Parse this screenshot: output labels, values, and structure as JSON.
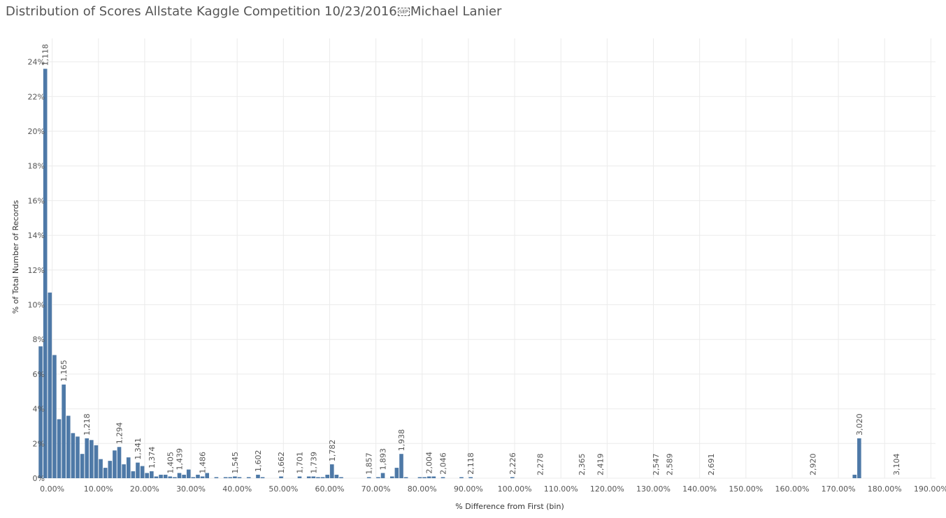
{
  "title_prefix": "Distribution of Scores Allstate Kaggle Competition 10/23/2016",
  "title_sep": "SEP",
  "title_suffix": "Michael Lanier",
  "chart_data": {
    "type": "bar",
    "xlabel": "% Difference from First (bin)",
    "ylabel": "% of Total Number of Records",
    "bar_color": "#4e79a7",
    "grid": true,
    "xlim": [
      -1.0,
      191.0
    ],
    "ylim": [
      0,
      25
    ],
    "x_ticks": [
      "0.00%",
      "10.00%",
      "20.00%",
      "30.00%",
      "40.00%",
      "50.00%",
      "60.00%",
      "70.00%",
      "80.00%",
      "90.00%",
      "100.00%",
      "110.00%",
      "120.00%",
      "130.00%",
      "140.00%",
      "150.00%",
      "160.00%",
      "170.00%",
      "180.00%",
      "190.00%"
    ],
    "x_tick_values": [
      0,
      10,
      20,
      30,
      40,
      50,
      60,
      70,
      80,
      90,
      100,
      110,
      120,
      130,
      140,
      150,
      160,
      170,
      180,
      190
    ],
    "y_ticks": [
      "0%",
      "2%",
      "4%",
      "6%",
      "8%",
      "10%",
      "12%",
      "14%",
      "16%",
      "18%",
      "20%",
      "22%",
      "24%"
    ],
    "y_tick_values": [
      0,
      2,
      4,
      6,
      8,
      10,
      12,
      14,
      16,
      18,
      20,
      22,
      24
    ],
    "bin_width": 1.0,
    "bins": [
      {
        "x": -2.5,
        "y": 7.6
      },
      {
        "x": -1.5,
        "y": 23.6
      },
      {
        "x": -0.5,
        "y": 10.7
      },
      {
        "x": 0.5,
        "y": 7.1
      },
      {
        "x": 1.5,
        "y": 3.4
      },
      {
        "x": 2.5,
        "y": 5.4
      },
      {
        "x": 3.5,
        "y": 3.6
      },
      {
        "x": 4.5,
        "y": 2.6
      },
      {
        "x": 5.5,
        "y": 2.4
      },
      {
        "x": 6.5,
        "y": 1.4
      },
      {
        "x": 7.5,
        "y": 2.3
      },
      {
        "x": 8.5,
        "y": 2.2
      },
      {
        "x": 9.5,
        "y": 1.9
      },
      {
        "x": 10.5,
        "y": 1.1
      },
      {
        "x": 11.5,
        "y": 0.6
      },
      {
        "x": 12.5,
        "y": 1.0
      },
      {
        "x": 13.5,
        "y": 1.6
      },
      {
        "x": 14.5,
        "y": 1.8
      },
      {
        "x": 15.5,
        "y": 0.8
      },
      {
        "x": 16.5,
        "y": 1.2
      },
      {
        "x": 17.5,
        "y": 0.4
      },
      {
        "x": 18.5,
        "y": 0.9
      },
      {
        "x": 19.5,
        "y": 0.7
      },
      {
        "x": 20.5,
        "y": 0.3
      },
      {
        "x": 21.5,
        "y": 0.4
      },
      {
        "x": 22.5,
        "y": 0.1
      },
      {
        "x": 23.5,
        "y": 0.2
      },
      {
        "x": 24.5,
        "y": 0.2
      },
      {
        "x": 25.5,
        "y": 0.1
      },
      {
        "x": 26.5,
        "y": 0.05
      },
      {
        "x": 27.5,
        "y": 0.3
      },
      {
        "x": 28.5,
        "y": 0.2
      },
      {
        "x": 29.5,
        "y": 0.5
      },
      {
        "x": 30.5,
        "y": 0.05
      },
      {
        "x": 31.5,
        "y": 0.2
      },
      {
        "x": 32.5,
        "y": 0.1
      },
      {
        "x": 33.5,
        "y": 0.3
      },
      {
        "x": 35.5,
        "y": 0.05
      },
      {
        "x": 37.5,
        "y": 0.05
      },
      {
        "x": 38.5,
        "y": 0.05
      },
      {
        "x": 39.5,
        "y": 0.1
      },
      {
        "x": 40.5,
        "y": 0.05
      },
      {
        "x": 42.5,
        "y": 0.05
      },
      {
        "x": 44.5,
        "y": 0.2
      },
      {
        "x": 45.5,
        "y": 0.05
      },
      {
        "x": 49.5,
        "y": 0.1
      },
      {
        "x": 53.5,
        "y": 0.1
      },
      {
        "x": 55.5,
        "y": 0.1
      },
      {
        "x": 56.5,
        "y": 0.1
      },
      {
        "x": 57.5,
        "y": 0.05
      },
      {
        "x": 58.5,
        "y": 0.05
      },
      {
        "x": 59.5,
        "y": 0.2
      },
      {
        "x": 60.5,
        "y": 0.8
      },
      {
        "x": 61.5,
        "y": 0.2
      },
      {
        "x": 62.5,
        "y": 0.05
      },
      {
        "x": 68.5,
        "y": 0.05
      },
      {
        "x": 70.5,
        "y": 0.05
      },
      {
        "x": 71.5,
        "y": 0.3
      },
      {
        "x": 73.5,
        "y": 0.1
      },
      {
        "x": 74.5,
        "y": 0.6
      },
      {
        "x": 75.5,
        "y": 1.4
      },
      {
        "x": 76.5,
        "y": 0.05
      },
      {
        "x": 79.5,
        "y": 0.05
      },
      {
        "x": 80.5,
        "y": 0.05
      },
      {
        "x": 81.5,
        "y": 0.1
      },
      {
        "x": 82.5,
        "y": 0.1
      },
      {
        "x": 84.5,
        "y": 0.05
      },
      {
        "x": 88.5,
        "y": 0.05
      },
      {
        "x": 90.5,
        "y": 0.05
      },
      {
        "x": 99.5,
        "y": 0.05
      },
      {
        "x": 173.5,
        "y": 0.2
      },
      {
        "x": 174.5,
        "y": 2.3
      }
    ],
    "data_labels": [
      {
        "text": "1,118",
        "x": -1.5,
        "y": 23.6
      },
      {
        "text": "1,165",
        "x": 2.5,
        "y": 5.4
      },
      {
        "text": "1,218",
        "x": 7.5,
        "y": 2.3
      },
      {
        "text": "1,294",
        "x": 14.5,
        "y": 1.8
      },
      {
        "text": "1,341",
        "x": 18.5,
        "y": 0.9
      },
      {
        "text": "1,374",
        "x": 21.5,
        "y": 0.4
      },
      {
        "text": "1,405",
        "x": 25.5,
        "y": 0.1
      },
      {
        "text": "1,439",
        "x": 27.5,
        "y": 0.3
      },
      {
        "text": "1,486",
        "x": 32.5,
        "y": 0.1
      },
      {
        "text": "1,545",
        "x": 39.5,
        "y": 0.1
      },
      {
        "text": "1,602",
        "x": 44.5,
        "y": 0.2
      },
      {
        "text": "1,662",
        "x": 49.5,
        "y": 0.1
      },
      {
        "text": "1,701",
        "x": 53.5,
        "y": 0.1
      },
      {
        "text": "1,739",
        "x": 56.5,
        "y": 0.1
      },
      {
        "text": "1,782",
        "x": 60.5,
        "y": 0.8
      },
      {
        "text": "1,857",
        "x": 68.5,
        "y": 0.05
      },
      {
        "text": "1,893",
        "x": 71.5,
        "y": 0.3
      },
      {
        "text": "1,938",
        "x": 75.5,
        "y": 1.4
      },
      {
        "text": "2,004",
        "x": 81.5,
        "y": 0.1
      },
      {
        "text": "2,046",
        "x": 84.5,
        "y": 0.05
      },
      {
        "text": "2,118",
        "x": 90.5,
        "y": 0.05
      },
      {
        "text": "2,226",
        "x": 99.5,
        "y": 0.05
      },
      {
        "text": "2,278",
        "x": 105.5,
        "y": 0
      },
      {
        "text": "2,365",
        "x": 114.5,
        "y": 0
      },
      {
        "text": "2,419",
        "x": 118.5,
        "y": 0
      },
      {
        "text": "2,547",
        "x": 130.5,
        "y": 0
      },
      {
        "text": "2,589",
        "x": 133.5,
        "y": 0
      },
      {
        "text": "2,691",
        "x": 142.5,
        "y": 0
      },
      {
        "text": "2,920",
        "x": 164.5,
        "y": 0
      },
      {
        "text": "3,020",
        "x": 174.5,
        "y": 2.3
      },
      {
        "text": "3,104",
        "x": 182.5,
        "y": 0
      }
    ]
  }
}
